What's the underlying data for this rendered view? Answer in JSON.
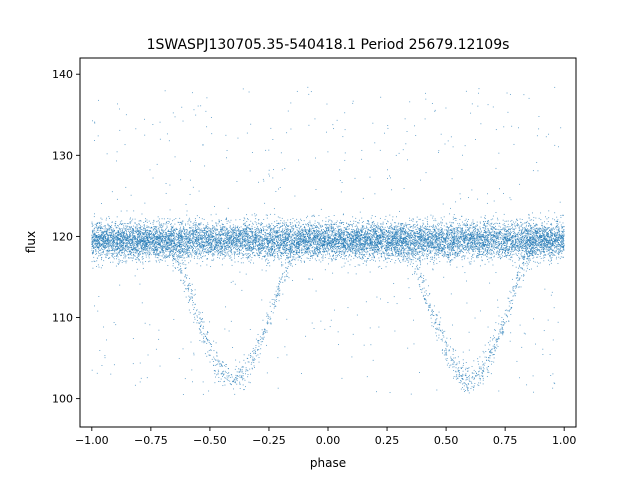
{
  "chart_data": {
    "type": "scatter",
    "title": "1SWASPJ130705.35-540418.1 Period 25679.12109s",
    "xlabel": "phase",
    "ylabel": "flux",
    "xlim": [
      -1.05,
      1.05
    ],
    "ylim": [
      96.5,
      142.0
    ],
    "xticks": [
      -1.0,
      -0.75,
      -0.5,
      -0.25,
      0.0,
      0.25,
      0.5,
      0.75,
      1.0
    ],
    "xtick_labels": [
      "−1.00",
      "−0.75",
      "−0.50",
      "−0.25",
      "0.00",
      "0.25",
      "0.50",
      "0.75",
      "1.00"
    ],
    "yticks": [
      100,
      110,
      120,
      130,
      140
    ],
    "ytick_labels": [
      "100",
      "110",
      "120",
      "130",
      "140"
    ],
    "grid": false,
    "legend": "none",
    "series": [
      {
        "marker_color": "#1f77b4",
        "points_approx": 26000,
        "baseline_flux": 119.5,
        "baseline_scatter": 1.6,
        "eclipse_centers_phase": [
          -0.4,
          0.6
        ],
        "eclipse_min_flux": 102.5,
        "eclipse_half_width_phase": 0.3,
        "x": [
          -1.0,
          -0.9,
          -0.8,
          -0.7,
          -0.6,
          -0.5,
          -0.45,
          -0.4,
          -0.35,
          -0.3,
          -0.2,
          -0.1,
          0.0,
          0.1,
          0.2,
          0.3,
          0.4,
          0.5,
          0.55,
          0.6,
          0.65,
          0.7,
          0.8,
          0.9,
          1.0
        ],
        "y_eclipse_branch": [
          119.5,
          119.0,
          117.0,
          113.5,
          109.5,
          105.5,
          103.8,
          103.0,
          103.8,
          105.5,
          110.0,
          116.0,
          119.5,
          119.0,
          117.0,
          113.5,
          109.5,
          105.5,
          103.8,
          103.0,
          103.8,
          105.5,
          110.0,
          116.0,
          119.5
        ]
      }
    ]
  }
}
